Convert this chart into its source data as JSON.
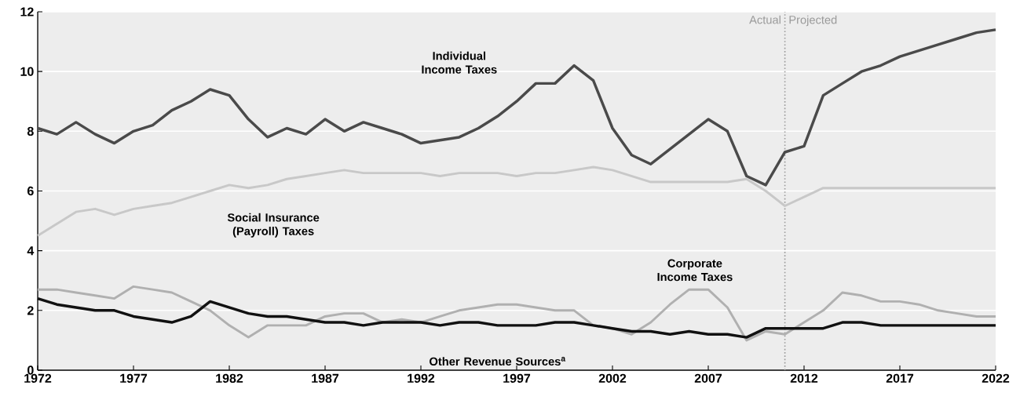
{
  "chart_data": {
    "type": "line",
    "x": [
      1972,
      1973,
      1974,
      1975,
      1976,
      1977,
      1978,
      1979,
      1980,
      1981,
      1982,
      1983,
      1984,
      1985,
      1986,
      1987,
      1988,
      1989,
      1990,
      1991,
      1992,
      1993,
      1994,
      1995,
      1996,
      1997,
      1998,
      1999,
      2000,
      2001,
      2002,
      2003,
      2004,
      2005,
      2006,
      2007,
      2008,
      2009,
      2010,
      2011,
      2012,
      2013,
      2014,
      2015,
      2016,
      2017,
      2018,
      2019,
      2020,
      2021,
      2022
    ],
    "series": [
      {
        "name": "Individual Income Taxes",
        "color": "#4a4a4a",
        "values": [
          8.1,
          7.9,
          8.3,
          7.9,
          7.6,
          8.0,
          8.2,
          8.7,
          9.0,
          9.4,
          9.2,
          8.4,
          7.8,
          8.1,
          7.9,
          8.4,
          8.0,
          8.3,
          8.1,
          7.9,
          7.6,
          7.7,
          7.8,
          8.1,
          8.5,
          9.0,
          9.6,
          9.6,
          10.2,
          9.7,
          8.1,
          7.2,
          6.9,
          7.4,
          7.9,
          8.4,
          8.0,
          6.5,
          6.2,
          7.3,
          7.5,
          9.2,
          9.6,
          10.0,
          10.2,
          10.5,
          10.7,
          10.9,
          11.1,
          11.3,
          11.4
        ]
      },
      {
        "name": "Social Insurance (Payroll) Taxes",
        "color": "#c8c8c8",
        "values": [
          4.5,
          4.9,
          5.3,
          5.4,
          5.2,
          5.4,
          5.5,
          5.6,
          5.8,
          6.0,
          6.2,
          6.1,
          6.2,
          6.4,
          6.5,
          6.6,
          6.7,
          6.6,
          6.6,
          6.6,
          6.6,
          6.5,
          6.6,
          6.6,
          6.6,
          6.5,
          6.6,
          6.6,
          6.7,
          6.8,
          6.7,
          6.5,
          6.3,
          6.3,
          6.3,
          6.3,
          6.3,
          6.4,
          6.0,
          5.5,
          5.8,
          6.1,
          6.1,
          6.1,
          6.1,
          6.1,
          6.1,
          6.1,
          6.1,
          6.1,
          6.1
        ]
      },
      {
        "name": "Corporate Income Taxes",
        "color": "#b0b0b0",
        "values": [
          2.7,
          2.7,
          2.6,
          2.5,
          2.4,
          2.8,
          2.7,
          2.6,
          2.3,
          2.0,
          1.5,
          1.1,
          1.5,
          1.5,
          1.5,
          1.8,
          1.9,
          1.9,
          1.6,
          1.7,
          1.6,
          1.8,
          2.0,
          2.1,
          2.2,
          2.2,
          2.1,
          2.0,
          2.0,
          1.5,
          1.4,
          1.2,
          1.6,
          2.2,
          2.7,
          2.7,
          2.1,
          1.0,
          1.3,
          1.2,
          1.6,
          2.0,
          2.6,
          2.5,
          2.3,
          2.3,
          2.2,
          2.0,
          1.9,
          1.8,
          1.8
        ]
      },
      {
        "name": "Other Revenue Sources$^{a}$",
        "color": "#111111",
        "values": [
          2.4,
          2.2,
          2.1,
          2.0,
          2.0,
          1.8,
          1.7,
          1.6,
          1.8,
          2.3,
          2.1,
          1.9,
          1.8,
          1.8,
          1.7,
          1.6,
          1.6,
          1.5,
          1.6,
          1.6,
          1.6,
          1.5,
          1.6,
          1.6,
          1.5,
          1.5,
          1.5,
          1.6,
          1.6,
          1.5,
          1.4,
          1.3,
          1.3,
          1.2,
          1.3,
          1.2,
          1.2,
          1.1,
          1.4,
          1.4,
          1.4,
          1.4,
          1.6,
          1.6,
          1.5,
          1.5,
          1.5,
          1.5,
          1.5,
          1.5,
          1.5
        ]
      }
    ],
    "xlim": [
      1972,
      2022
    ],
    "xticks": [
      1972,
      1977,
      1982,
      1987,
      1992,
      1997,
      2002,
      2007,
      2012,
      2017,
      2022
    ],
    "ylim": [
      0,
      12
    ],
    "yticks": [
      0,
      2,
      4,
      6,
      8,
      10,
      12
    ],
    "grid": "y",
    "legend": false,
    "marker": "none",
    "line_style": "solid",
    "ref_lines": [
      {
        "axis": "x",
        "value": 2011,
        "label": "Actual",
        "color": "#9a9a9a",
        "line_style": "dotted"
      }
    ],
    "annotations": [
      "Projected"
    ]
  }
}
